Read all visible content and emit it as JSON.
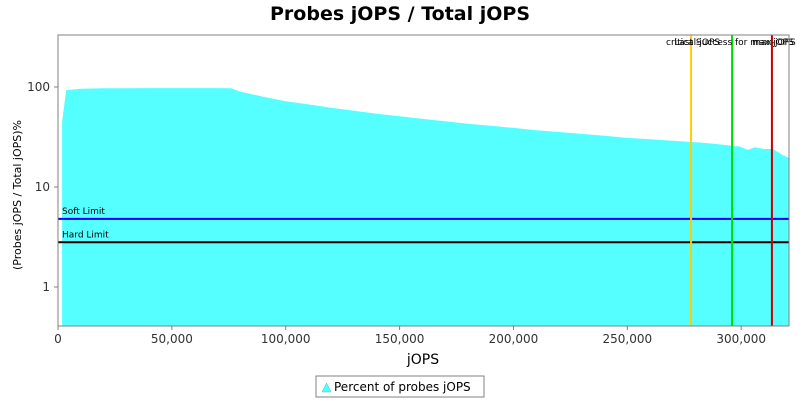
{
  "chart_data": {
    "type": "area",
    "title": "Probes jOPS / Total jOPS",
    "xlabel": "jOPS",
    "ylabel": "(Probes jOPS / Total jOPS)%",
    "xlim": [
      0,
      321000
    ],
    "ylim": [
      0.5,
      130
    ],
    "yscale": "log",
    "x_ticks": [
      0,
      50000,
      100000,
      150000,
      200000,
      250000,
      300000
    ],
    "x_tick_labels": [
      "0",
      "50,000",
      "100,000",
      "150,000",
      "200,000",
      "250,000",
      "300,000"
    ],
    "y_ticks": [
      1,
      10,
      100
    ],
    "y_tick_labels": [
      "1",
      "10",
      "100"
    ],
    "series": [
      {
        "name": "Percent of probes jOPS",
        "color": "#55ffff",
        "x": [
          1800,
          3600,
          10000,
          20000,
          40000,
          60000,
          70000,
          76000,
          80000,
          90000,
          100000,
          110000,
          120000,
          130000,
          140000,
          150000,
          160000,
          170000,
          180000,
          190000,
          200000,
          210000,
          220000,
          230000,
          240000,
          250000,
          260000,
          270000,
          280000,
          285000,
          290000,
          295000,
          297000,
          299000,
          303000,
          306000,
          310000,
          314000,
          318000,
          321000
        ],
        "y": [
          45,
          93,
          96,
          97,
          97.5,
          97.5,
          97.5,
          97,
          90,
          80,
          72,
          67,
          62,
          58,
          54,
          51,
          48,
          45.5,
          43,
          41,
          39,
          37,
          35.5,
          34,
          32.5,
          31,
          30,
          29,
          28,
          27.5,
          26.8,
          26,
          25.5,
          25.5,
          23.5,
          25,
          24,
          24,
          21,
          19.5
        ]
      }
    ],
    "reference_lines_horizontal": [
      {
        "label": "Soft Limit",
        "value": 4.8,
        "color": "#0000ff"
      },
      {
        "label": "Hard Limit",
        "value": 2.8,
        "color": "#000000"
      }
    ],
    "reference_lines_vertical": [
      {
        "label": "critical-jOPS",
        "value": 278000,
        "color": "#ffcc00"
      },
      {
        "label": "Last Success for max-jOPS",
        "value": 296000,
        "color": "#00dd00"
      },
      {
        "label": "max-jOPS",
        "value": 313500,
        "color": "#cc0000"
      }
    ],
    "legend": {
      "position": "bottom"
    },
    "grid": false
  }
}
